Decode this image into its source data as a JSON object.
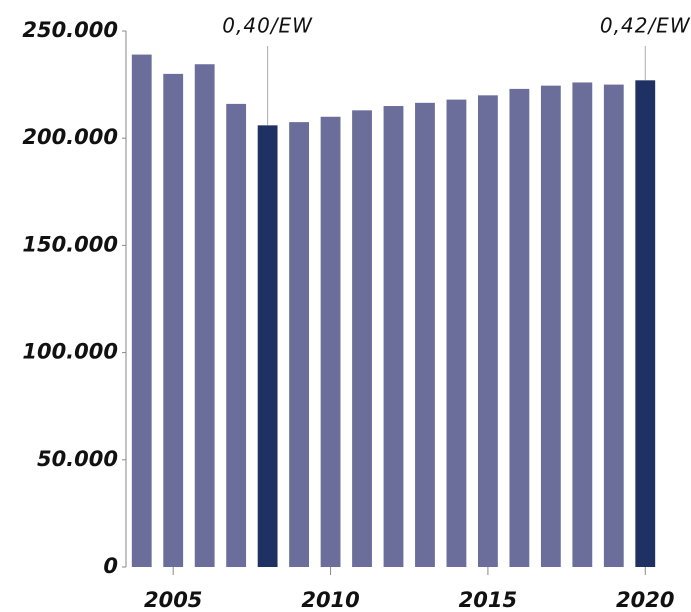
{
  "chart_data": {
    "type": "bar",
    "x": [
      2004,
      2005,
      2006,
      2007,
      2008,
      2009,
      2010,
      2011,
      2012,
      2013,
      2014,
      2015,
      2016,
      2017,
      2018,
      2019,
      2020
    ],
    "values": [
      239000,
      230000,
      234500,
      216000,
      206000,
      207500,
      210000,
      213000,
      215000,
      216500,
      218000,
      220000,
      223000,
      224500,
      226000,
      225000,
      227000
    ],
    "color": "#6b6e9b",
    "highlight_color": "#1f3163",
    "annotations": [
      {
        "x": 2008,
        "text": "0,40/EW"
      },
      {
        "x": 2020,
        "text": "0,42/EW"
      }
    ],
    "xlim": [
      2003.5,
      2020.5
    ],
    "xticks": [
      2005,
      2010,
      2015,
      2020
    ],
    "ylim": [
      0,
      250000
    ],
    "yticks": [
      0,
      {
        "value": 50000,
        "label": "50.000"
      },
      {
        "value": 100000,
        "label": "100.000"
      },
      {
        "value": 150000,
        "label": "150.000"
      },
      {
        "value": 200000,
        "label": "200.000"
      },
      {
        "value": 250000,
        "label": "250.000"
      }
    ]
  }
}
